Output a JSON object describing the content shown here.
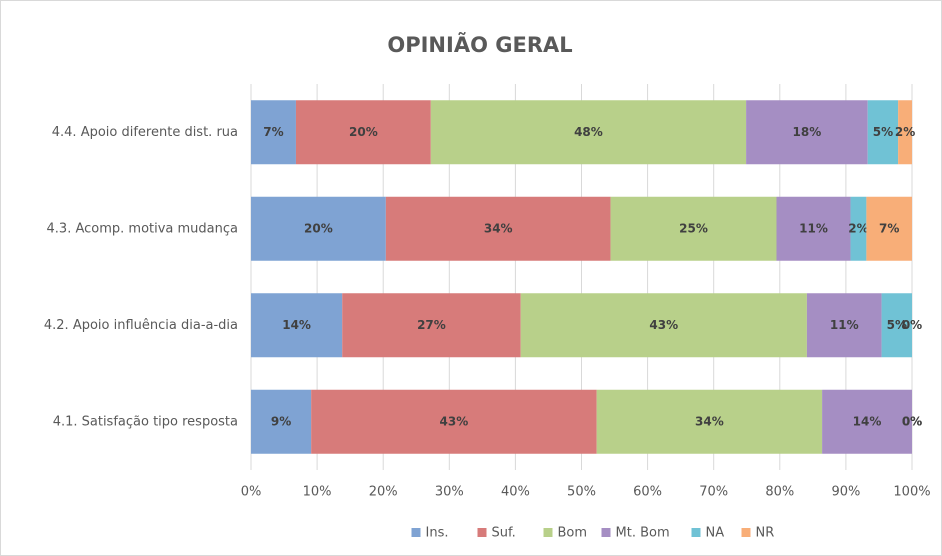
{
  "chart_data": {
    "type": "stacked-bar-horizontal",
    "title": "OPINIÃO GERAL",
    "categories": [
      "4.4. Apoio diferente dist. rua",
      "4.3. Acomp. motiva mudança",
      "4.2. Apoio influência dia-a-dia",
      "4.1. Satisfação tipo resposta"
    ],
    "series": [
      {
        "name": "Ins.",
        "color": "#7fa3d3",
        "values": [
          6.8,
          20.4,
          13.8,
          9.1
        ],
        "value_labels": [
          "7%",
          "20%",
          "14%",
          "9%"
        ]
      },
      {
        "name": "Suf.",
        "color": "#d77b7a",
        "values": [
          20.4,
          34.0,
          27.0,
          43.2
        ],
        "value_labels": [
          "20%",
          "34%",
          "27%",
          "43%"
        ]
      },
      {
        "name": "Bom",
        "color": "#b8d08a",
        "values": [
          47.7,
          25.1,
          43.3,
          34.1
        ],
        "value_labels": [
          "48%",
          "25%",
          "43%",
          "34%"
        ]
      },
      {
        "name": "Mt. Bom",
        "color": "#a58ec3",
        "values": [
          18.4,
          11.2,
          11.3,
          13.6
        ],
        "value_labels": [
          "18%",
          "11%",
          "11%",
          "14%"
        ]
      },
      {
        "name": "NA",
        "color": "#70c2d5",
        "values": [
          4.6,
          2.4,
          4.6,
          0
        ],
        "value_labels": [
          "5%",
          "2%",
          "5%",
          "0%"
        ]
      },
      {
        "name": "NR",
        "color": "#f8ae78",
        "values": [
          2.1,
          6.9,
          0,
          0
        ],
        "value_labels": [
          "2%",
          "7%",
          "0%",
          "0%"
        ]
      }
    ],
    "xlim": [
      0,
      100
    ],
    "xticks": [
      {
        "value": 0,
        "label": "0%"
      },
      {
        "value": 10,
        "label": "10%"
      },
      {
        "value": 20,
        "label": "20%"
      },
      {
        "value": 30,
        "label": "30%"
      },
      {
        "value": 40,
        "label": "40%"
      },
      {
        "value": 50,
        "label": "50%"
      },
      {
        "value": 60,
        "label": "60%"
      },
      {
        "value": 70,
        "label": "70%"
      },
      {
        "value": 80,
        "label": "80%"
      },
      {
        "value": 90,
        "label": "90%"
      },
      {
        "value": 100,
        "label": "100%"
      }
    ],
    "grid": true,
    "legend": "bottom"
  }
}
